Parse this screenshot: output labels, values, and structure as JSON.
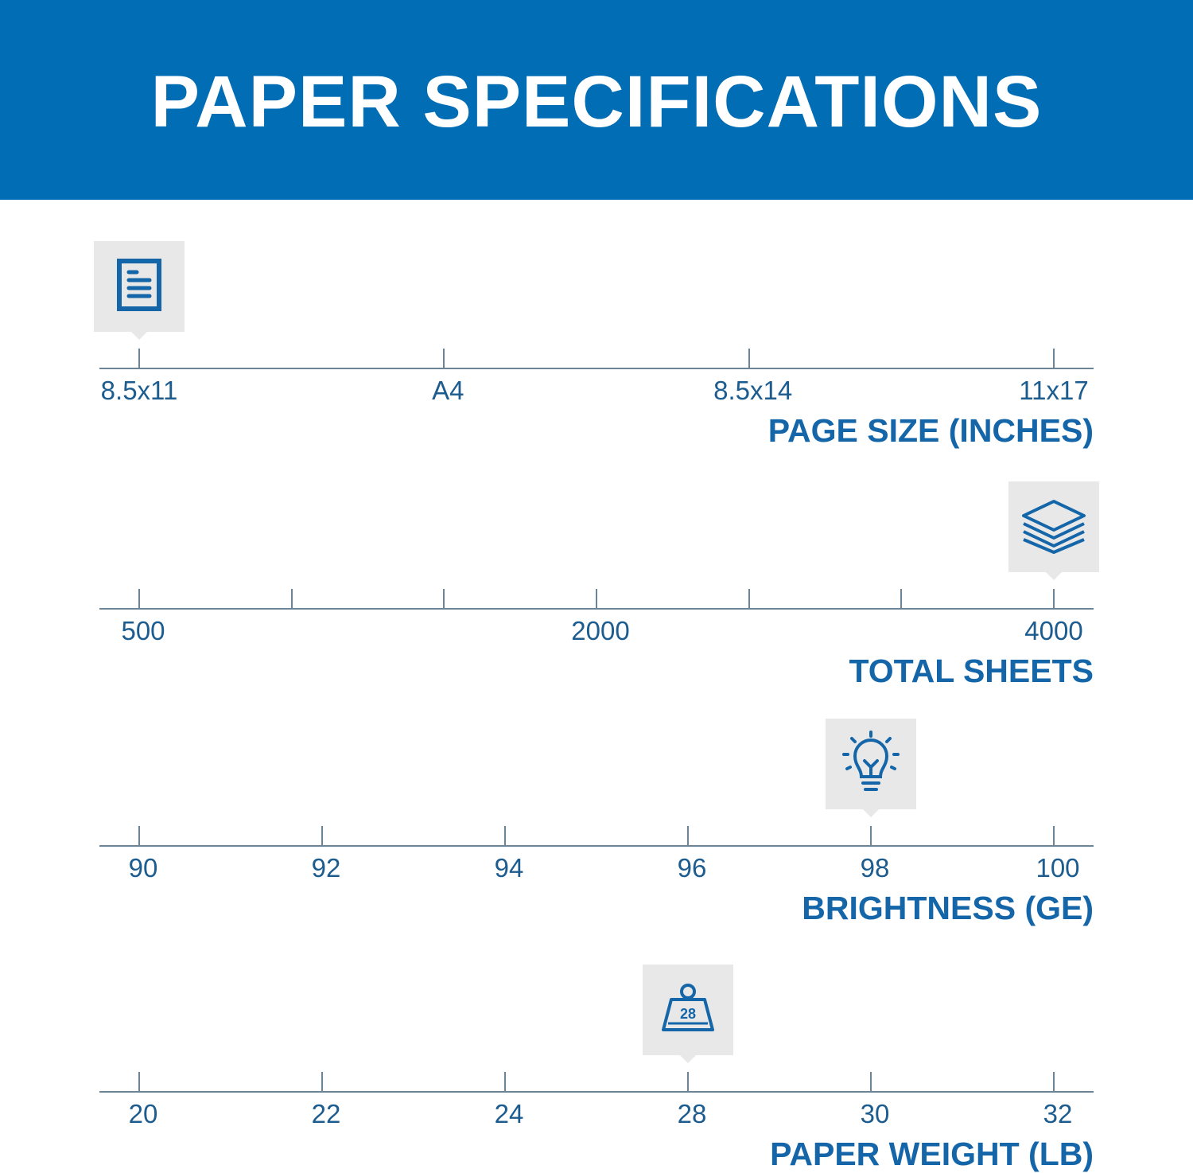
{
  "header": {
    "title": "PAPER SPECIFICATIONS",
    "background": "#016db5"
  },
  "accent": "#1466a9",
  "specs": [
    {
      "title": "PAGE SIZE (INCHES)",
      "icon": "document-icon",
      "ticks": [
        "8.5x11",
        "A4",
        "8.5x14",
        "11x17"
      ],
      "selected": "8.5x11"
    },
    {
      "title": "TOTAL SHEETS",
      "icon": "paper-stack-icon",
      "ticks": [
        "500",
        "",
        "",
        "2000",
        "",
        "",
        "4000"
      ],
      "selected": "4000"
    },
    {
      "title": "BRIGHTNESS (GE)",
      "icon": "lightbulb-icon",
      "ticks": [
        "90",
        "92",
        "94",
        "96",
        "98",
        "100"
      ],
      "selected": "98"
    },
    {
      "title": "PAPER WEIGHT (LB)",
      "icon": "weight-icon",
      "icon_text": "28",
      "ticks": [
        "20",
        "22",
        "24",
        "28",
        "30",
        "32"
      ],
      "selected": "28"
    }
  ]
}
